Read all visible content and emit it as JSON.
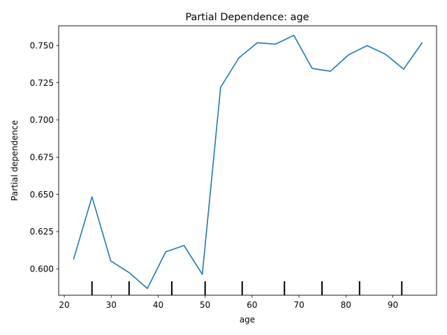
{
  "chart_data": {
    "type": "line",
    "title": "Partial Dependence: age",
    "xlabel": "age",
    "ylabel": "Partial dependence",
    "xlim": [
      18.8,
      99.3
    ],
    "ylim": [
      0.5823,
      0.7632
    ],
    "xticks": [
      20,
      30,
      40,
      50,
      60,
      70,
      80,
      90
    ],
    "xtick_labels": [
      "20",
      "30",
      "40",
      "50",
      "60",
      "70",
      "80",
      "90"
    ],
    "yticks": [
      0.6,
      0.625,
      0.65,
      0.675,
      0.7,
      0.725,
      0.75
    ],
    "ytick_labels": [
      "0.600",
      "0.625",
      "0.650",
      "0.675",
      "0.700",
      "0.725",
      "0.750"
    ],
    "grid": false,
    "series": [
      {
        "color": "#1f77b4",
        "x": [
          22.0,
          25.9,
          29.9,
          33.8,
          37.7,
          41.6,
          45.5,
          49.4,
          53.3,
          57.2,
          61.1,
          65.0,
          68.9,
          72.8,
          76.7,
          80.6,
          84.5,
          88.4,
          92.3,
          96.2
        ],
        "y": [
          0.6067,
          0.6484,
          0.6053,
          0.5975,
          0.5868,
          0.6114,
          0.6157,
          0.5963,
          0.7219,
          0.7417,
          0.7518,
          0.7509,
          0.7568,
          0.7346,
          0.7327,
          0.7438,
          0.7499,
          0.7442,
          0.7341,
          0.7517
        ]
      }
    ],
    "rug": {
      "color": "#000000",
      "x": [
        25.9,
        33.8,
        42.9,
        50.0,
        57.9,
        66.9,
        74.9,
        82.9,
        91.9
      ]
    }
  }
}
